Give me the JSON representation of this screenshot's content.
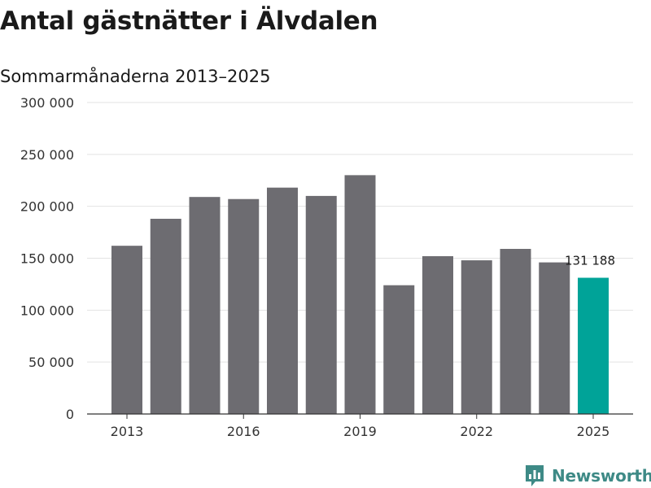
{
  "chart_data": {
    "type": "bar",
    "title": "Antal gästnätter i Älvdalen",
    "subtitle": "Sommarmånaderna 2013–2025",
    "categories": [
      "2013",
      "2014",
      "2015",
      "2016",
      "2017",
      "2018",
      "2019",
      "2020",
      "2021",
      "2022",
      "2023",
      "2024",
      "2025"
    ],
    "values": [
      162000,
      188000,
      209000,
      207000,
      218000,
      210000,
      230000,
      124000,
      152000,
      148000,
      159000,
      146000,
      131188
    ],
    "ylim": [
      0,
      300000
    ],
    "yticks": [
      0,
      50000,
      100000,
      150000,
      200000,
      250000,
      300000
    ],
    "ytick_labels": [
      "0",
      "50 000",
      "100 000",
      "150 000",
      "200 000",
      "250 000",
      "300 000"
    ],
    "xtick_labels": [
      "2013",
      "2016",
      "2019",
      "2022",
      "2025"
    ],
    "highlight_label": "131 188",
    "grid": true,
    "colors": {
      "bar": "#6d6c71",
      "highlight": "#00a398",
      "grid": "#e3e3e3",
      "axis": "#333333"
    }
  },
  "brand": {
    "name": "Newsworthy",
    "logo_icon": "bar-chart-pin-icon",
    "color": "#3e8a86"
  }
}
